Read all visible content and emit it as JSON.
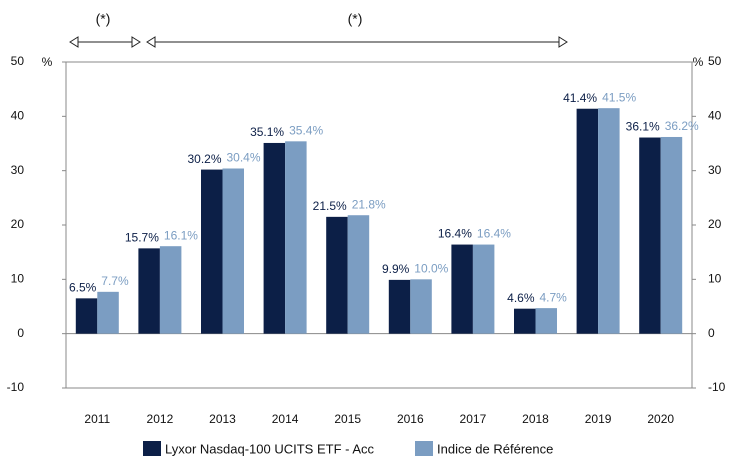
{
  "chart_data": {
    "type": "bar",
    "annotations": [
      "(*)",
      "(*)"
    ],
    "ylabel": "%",
    "y2label": "%",
    "categories": [
      "2011",
      "2012",
      "2013",
      "2014",
      "2015",
      "2016",
      "2017",
      "2018",
      "2019",
      "2020"
    ],
    "series": [
      {
        "name": "Lyxor Nasdaq-100 UCITS ETF - Acc",
        "color": "#0c1f47",
        "values": [
          6.5,
          15.7,
          30.2,
          35.1,
          21.5,
          9.9,
          16.4,
          4.6,
          41.4,
          36.1
        ],
        "value_labels": [
          "6.5%",
          "15.7%",
          "30.2%",
          "35.1%",
          "21.5%",
          "9.9%",
          "16.4%",
          "4.6%",
          "41.4%",
          "36.1%"
        ]
      },
      {
        "name": "Indice de Référence",
        "color": "#7b9dc2",
        "values": [
          7.7,
          16.1,
          30.4,
          35.4,
          21.8,
          10.0,
          16.4,
          4.7,
          41.5,
          36.2
        ],
        "value_labels": [
          "7.7%",
          "16.1%",
          "30.4%",
          "35.4%",
          "21.8%",
          "10.0%",
          "16.4%",
          "4.7%",
          "41.5%",
          "36.2%"
        ]
      }
    ],
    "ylim": [
      -10,
      50
    ],
    "yticks": [
      -10,
      0,
      10,
      20,
      30,
      40,
      50
    ],
    "y2lim": [
      -10,
      50
    ],
    "y2ticks": [
      -10,
      0,
      10,
      20,
      30,
      40,
      50
    ]
  }
}
